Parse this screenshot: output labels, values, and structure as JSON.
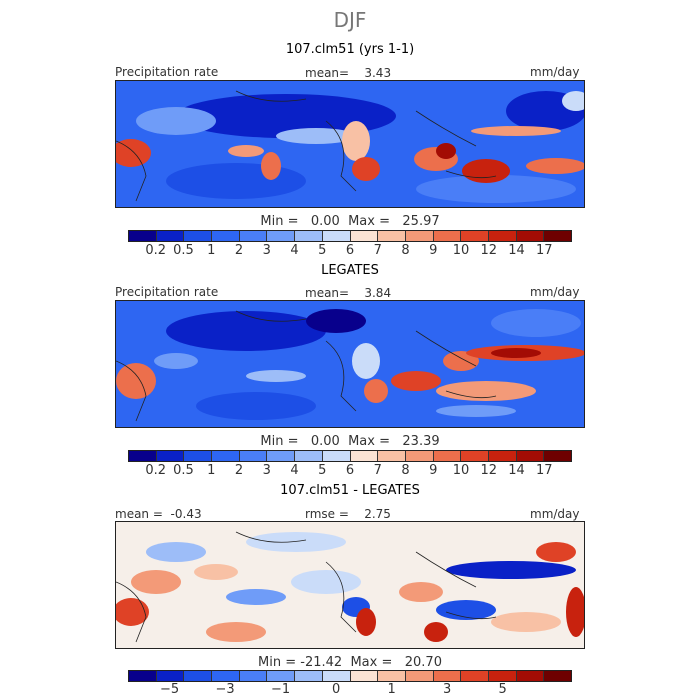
{
  "season": "DJF",
  "colors": {
    "abs_scale": [
      "#08008c",
      "#0a21c7",
      "#1d4fe6",
      "#2e66f2",
      "#4a7ef7",
      "#6f9cf8",
      "#9dbdf8",
      "#cadcf9",
      "#fbe3d4",
      "#f8c1a5",
      "#f39a78",
      "#ec6f4c",
      "#df4226",
      "#c8220e",
      "#a30c04",
      "#6e0000"
    ],
    "diff_scale": [
      "#08008c",
      "#0a21c7",
      "#1d4fe6",
      "#2e66f2",
      "#4a7ef7",
      "#6f9cf8",
      "#9dbdf8",
      "#cadcf9",
      "#fbe3d4",
      "#f8c1a5",
      "#f39a78",
      "#ec6f4c",
      "#df4226",
      "#c8220e",
      "#a30c04",
      "#6e0000"
    ]
  },
  "chart_data": [
    {
      "type": "heatmap",
      "title": "107.clm51 (yrs 1-1)",
      "label_left": "Precipitation rate",
      "mean_label": "mean=",
      "mean_value": "3.43",
      "units": "mm/day",
      "min_label": "Min =",
      "min_value": "0.00",
      "max_label": "Max =",
      "max_value": "25.97",
      "colorbar_ticks": [
        "0.2",
        "0.5",
        "1",
        "2",
        "3",
        "4",
        "5",
        "6",
        "7",
        "8",
        "9",
        "10",
        "12",
        "14",
        "17"
      ]
    },
    {
      "type": "heatmap",
      "title": "LEGATES",
      "label_left": "Precipitation rate",
      "mean_label": "mean=",
      "mean_value": "3.84",
      "units": "mm/day",
      "min_label": "Min =",
      "min_value": "0.00",
      "max_label": "Max =",
      "max_value": "23.39",
      "colorbar_ticks": [
        "0.2",
        "0.5",
        "1",
        "2",
        "3",
        "4",
        "5",
        "6",
        "7",
        "8",
        "9",
        "10",
        "12",
        "14",
        "17"
      ]
    },
    {
      "type": "heatmap",
      "title": "107.clm51 - LEGATES",
      "mean_label": "mean =",
      "mean_value": "-0.43",
      "rmse_label": "rmse =",
      "rmse_value": "2.75",
      "units": "mm/day",
      "min_label": "Min =",
      "min_value": "-21.42",
      "max_label": "Max =",
      "max_value": "20.70",
      "colorbar_ticks": [
        "−5",
        "−3",
        "−1",
        "0",
        "1",
        "3",
        "5"
      ]
    }
  ]
}
